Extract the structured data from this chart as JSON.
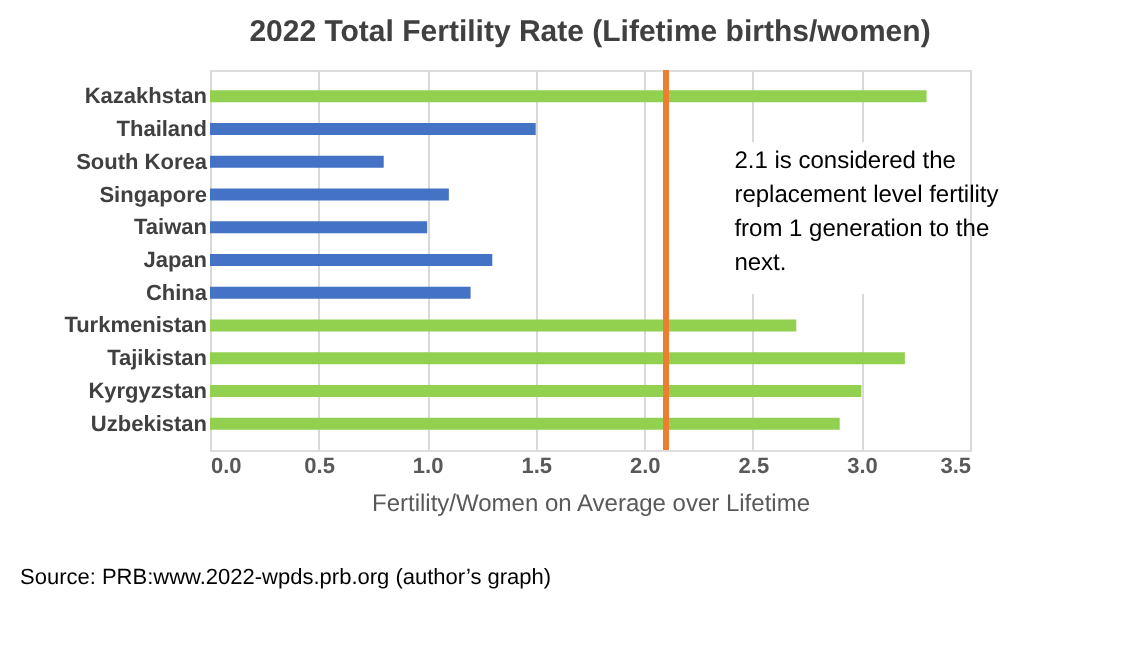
{
  "chart_data": {
    "type": "bar",
    "orientation": "horizontal",
    "title": "2022 Total Fertility Rate (Lifetime births/women)",
    "xlabel": "Fertility/Women on Average over Lifetime",
    "categories": [
      "Kazakhstan",
      "Thailand",
      "South Korea",
      "Singapore",
      "Taiwan",
      "Japan",
      "China",
      "Turkmenistan",
      "Tajikistan",
      "Kyrgyzstan",
      "Uzbekistan"
    ],
    "values": [
      3.3,
      1.5,
      0.8,
      1.1,
      1.0,
      1.3,
      1.2,
      2.7,
      3.2,
      3.0,
      2.9
    ],
    "colors": [
      "#92d050",
      "#4472c4",
      "#4472c4",
      "#4472c4",
      "#4472c4",
      "#4472c4",
      "#4472c4",
      "#92d050",
      "#92d050",
      "#92d050",
      "#92d050"
    ],
    "xlim": [
      0,
      3.5
    ],
    "xticks": [
      {
        "value": 0,
        "label": "0.0"
      },
      {
        "value": 0.5,
        "label": "0.5"
      },
      {
        "value": 1,
        "label": "1.0"
      },
      {
        "value": 1.5,
        "label": "1.5"
      },
      {
        "value": 2,
        "label": "2.0"
      },
      {
        "value": 2.5,
        "label": "2.5"
      },
      {
        "value": 3,
        "label": "3.0"
      },
      {
        "value": 3.5,
        "label": "3.5"
      }
    ],
    "grid": "x",
    "ref_lines": [
      {
        "axis": "x",
        "value": 2.1,
        "color": "#ed7d31"
      }
    ],
    "annotations": [
      "2.1 is considered the replacement level fertility from 1 generation to the next.",
      "Source: PRB:www.2022-wpds.prb.org (author’s graph)"
    ]
  }
}
